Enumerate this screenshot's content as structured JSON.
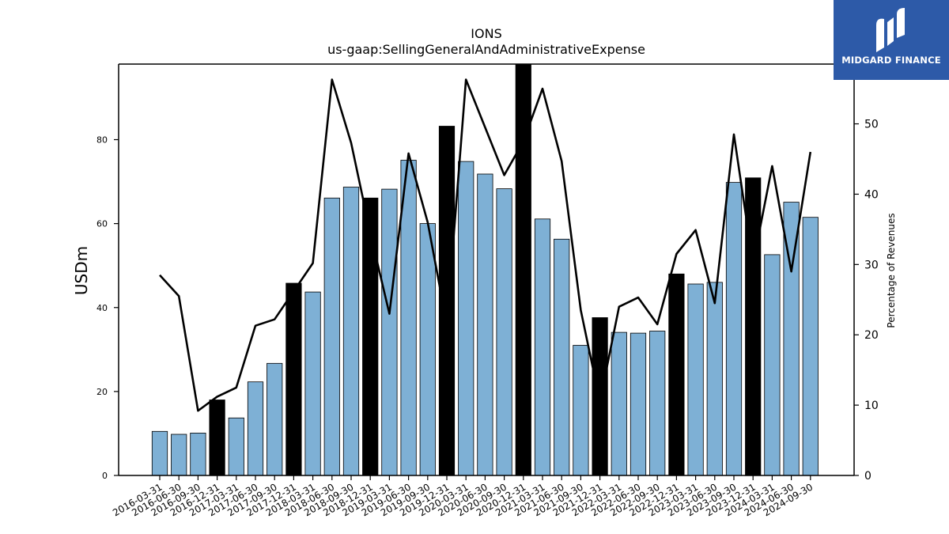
{
  "chart_data": {
    "type": "bar",
    "title": "IONS",
    "subtitle": "us-gaap:SellingGeneralAndAdministrativeExpense",
    "ylabel": "USDm",
    "y2label": "Percentage of Revenues",
    "ylim": [
      0,
      98
    ],
    "y2lim": [
      0,
      58.5
    ],
    "yticks": [
      0,
      20,
      40,
      60,
      80
    ],
    "y2ticks": [
      0,
      10,
      20,
      30,
      40,
      50
    ],
    "categories": [
      "2016-03-31",
      "2016-06-30",
      "2016-09-30",
      "2016-12-31",
      "2017-03-31",
      "2017-06-30",
      "2017-09-30",
      "2017-12-31",
      "2018-03-31",
      "2018-06-30",
      "2018-09-30",
      "2018-12-31",
      "2019-03-31",
      "2019-06-30",
      "2019-09-30",
      "2019-12-31",
      "2020-03-31",
      "2020-06-30",
      "2020-09-30",
      "2020-12-31",
      "2021-03-31",
      "2021-06-30",
      "2021-09-30",
      "2021-12-31",
      "2022-03-31",
      "2022-06-30",
      "2022-09-30",
      "2022-12-31",
      "2023-03-31",
      "2023-06-30",
      "2023-09-30",
      "2023-12-31",
      "2024-03-31",
      "2024-06-30",
      "2024-09-30"
    ],
    "series": [
      {
        "type": "bar",
        "values": [
          10.5,
          9.8,
          10.1,
          18.0,
          13.7,
          22.3,
          26.7,
          45.8,
          43.7,
          66.1,
          68.7,
          66.1,
          68.2,
          75.1,
          60.0,
          83.2,
          74.8,
          71.8,
          68.3,
          98.0,
          61.1,
          56.3,
          31.0,
          37.6,
          34.1,
          33.9,
          34.4,
          48.0,
          45.6,
          46.0,
          69.8,
          70.9,
          52.6,
          65.1,
          61.5
        ],
        "colors": {
          "quarter": "#7eb0d5",
          "year_end": "#000000"
        }
      },
      {
        "type": "line",
        "values": [
          28.5,
          25.5,
          9.2,
          11.2,
          12.5,
          21.3,
          22.2,
          26.2,
          30.2,
          56.3,
          47.3,
          34.5,
          23.0,
          45.8,
          36.0,
          21.5,
          56.3,
          49.5,
          42.7,
          47.5,
          55.0,
          44.7,
          23.5,
          10.5,
          24.0,
          25.3,
          21.5,
          31.5,
          34.9,
          24.5,
          48.5,
          30.1,
          44.0,
          29.0,
          46.0
        ],
        "color": "#000000"
      }
    ],
    "legend": "none",
    "grid": false,
    "logo_text": "MIDGARD FINANCE"
  }
}
